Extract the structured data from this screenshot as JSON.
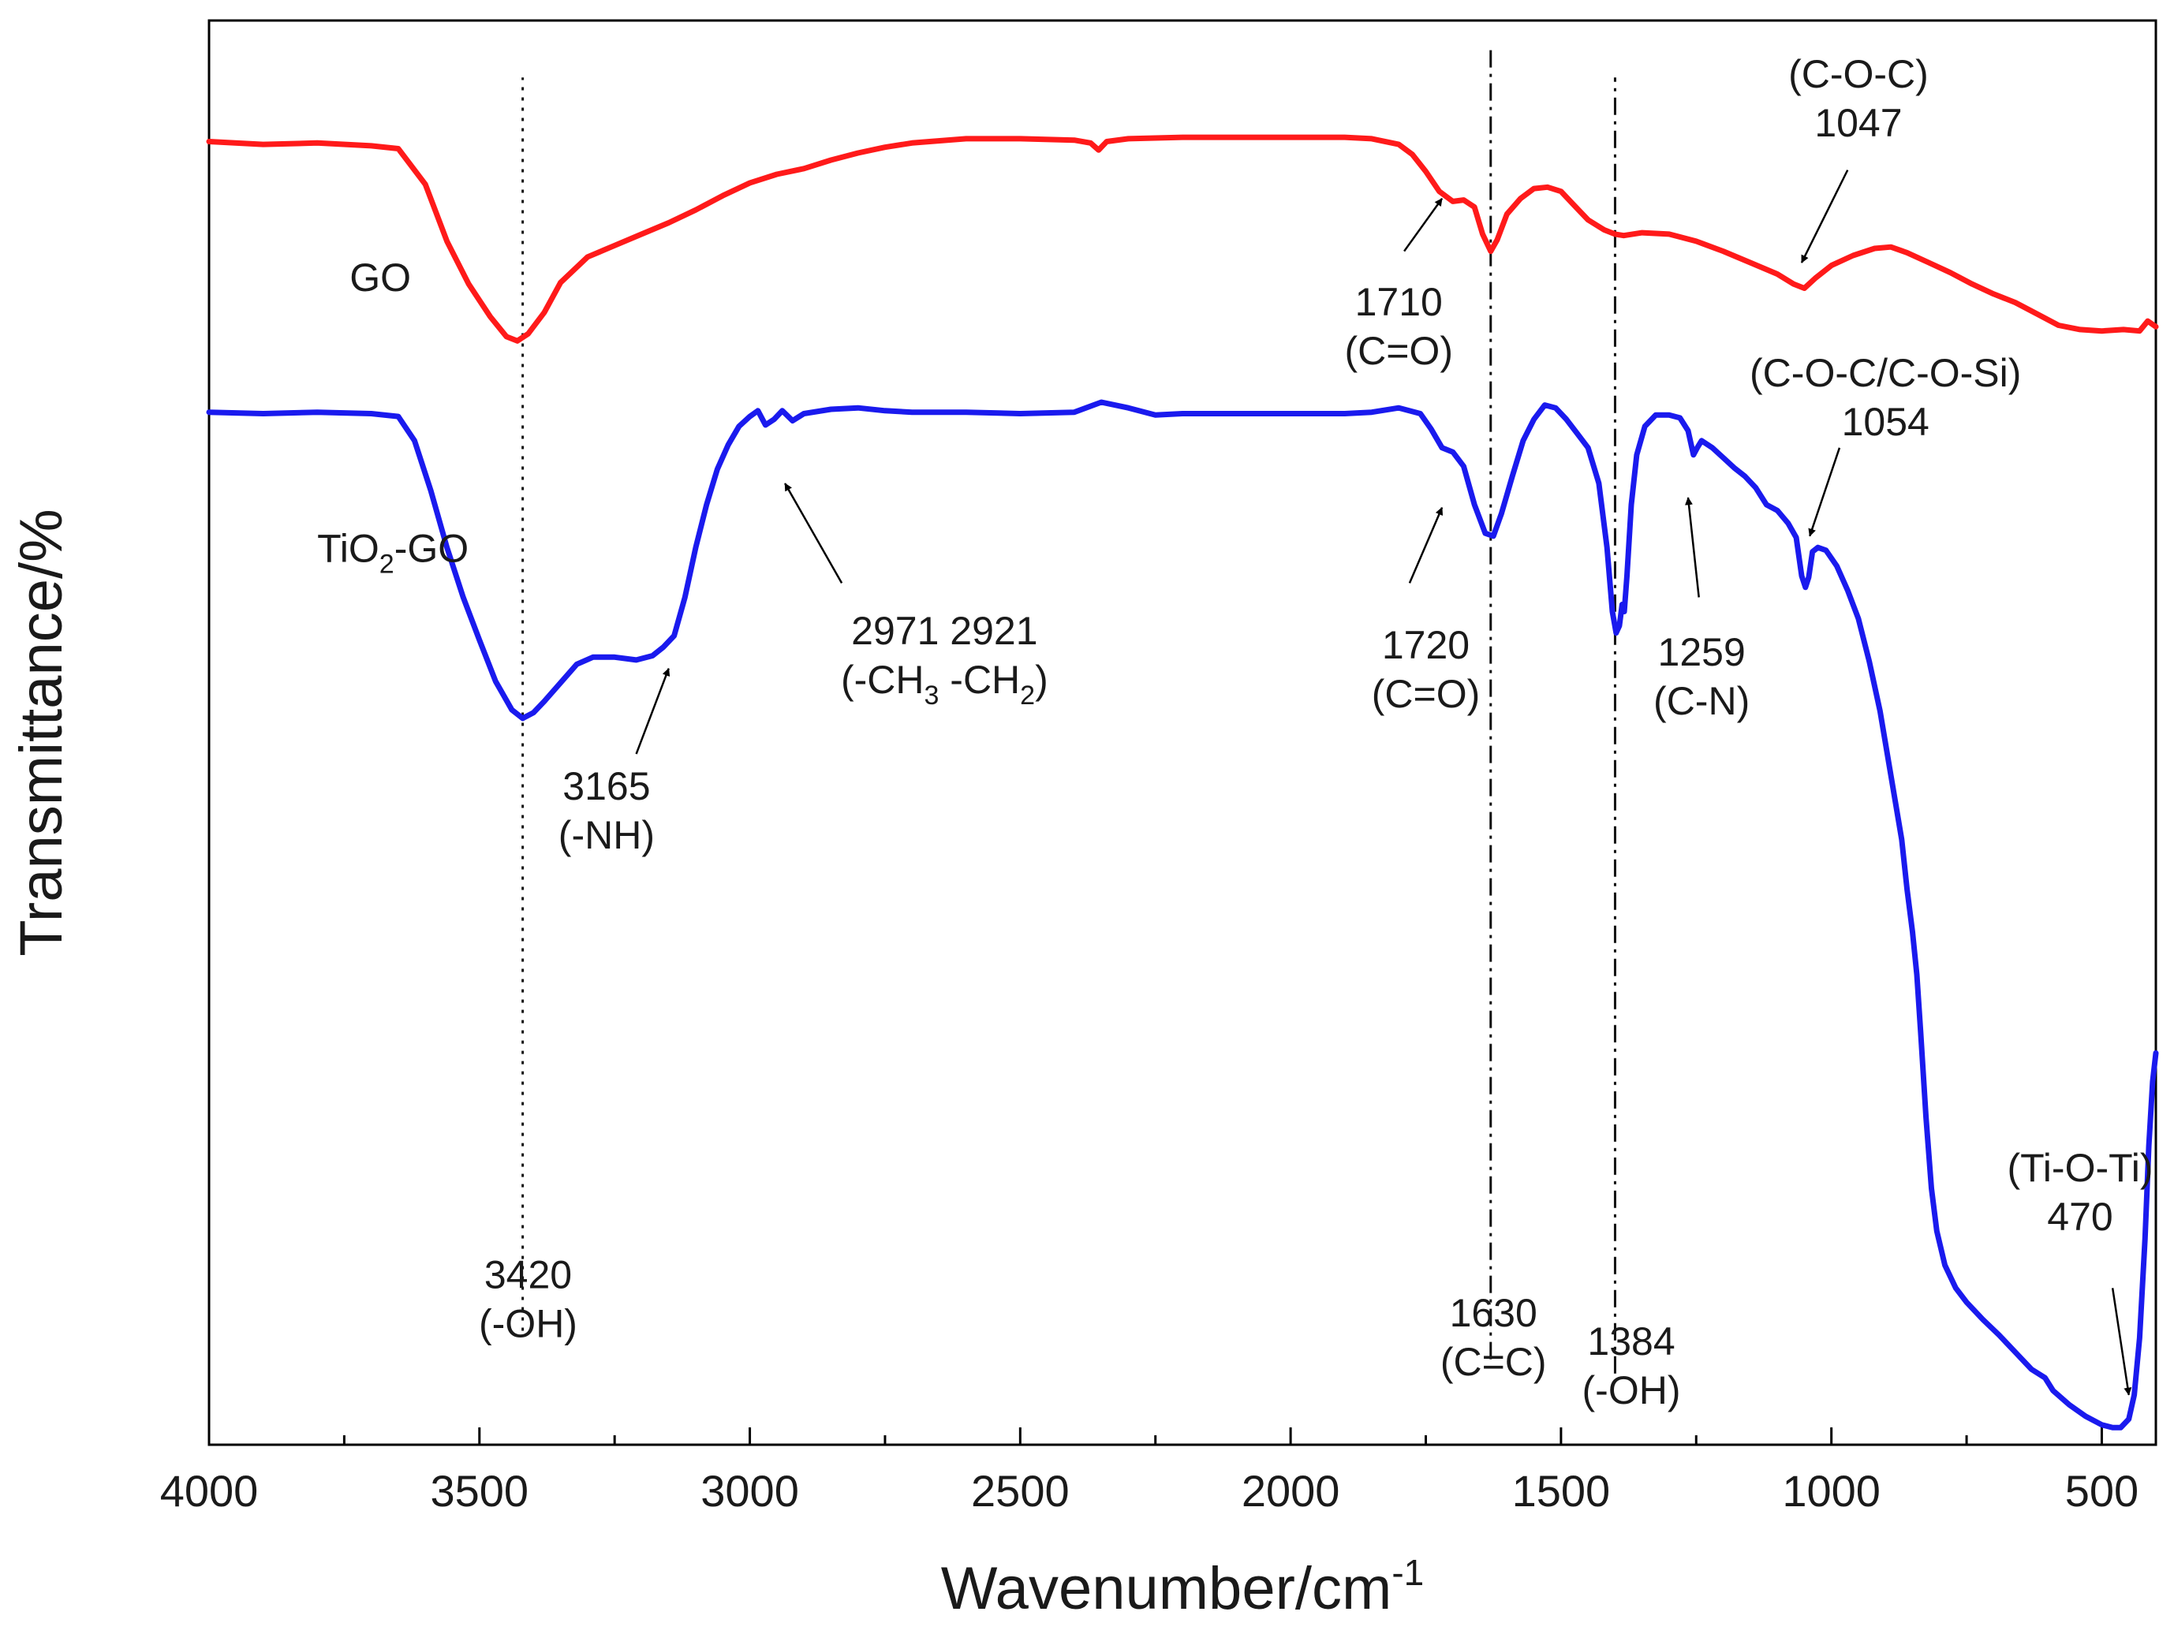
{
  "chart_data": {
    "type": "line",
    "xlabel": "Wavenumber/cm",
    "xlabel_sup": "-1",
    "ylabel": "Transmittance/%",
    "xlim": [
      4000,
      400
    ],
    "ylim": [
      0,
      100
    ],
    "x_reversed": true,
    "x_ticks": [
      4000,
      3500,
      3000,
      2500,
      2000,
      1500,
      1000,
      500
    ],
    "x_tick_labels": [
      "4000",
      "3500",
      "3000",
      "2500",
      "2000",
      "1500",
      "1000",
      "500"
    ],
    "y_tick_labels": false,
    "grid": false,
    "series": [
      {
        "name": "GO",
        "color": "#ff1a1a",
        "points": [
          [
            4000,
            91.5
          ],
          [
            3900,
            91.3
          ],
          [
            3800,
            91.4
          ],
          [
            3700,
            91.2
          ],
          [
            3650,
            91.0
          ],
          [
            3600,
            88.5
          ],
          [
            3560,
            84.5
          ],
          [
            3520,
            81.5
          ],
          [
            3480,
            79.2
          ],
          [
            3450,
            77.8
          ],
          [
            3430,
            77.5
          ],
          [
            3410,
            78.0
          ],
          [
            3380,
            79.5
          ],
          [
            3350,
            81.6
          ],
          [
            3300,
            83.4
          ],
          [
            3250,
            84.2
          ],
          [
            3200,
            85.0
          ],
          [
            3150,
            85.8
          ],
          [
            3100,
            86.7
          ],
          [
            3050,
            87.7
          ],
          [
            3000,
            88.6
          ],
          [
            2950,
            89.2
          ],
          [
            2900,
            89.6
          ],
          [
            2850,
            90.2
          ],
          [
            2800,
            90.7
          ],
          [
            2750,
            91.1
          ],
          [
            2700,
            91.4
          ],
          [
            2600,
            91.7
          ],
          [
            2500,
            91.7
          ],
          [
            2400,
            91.6
          ],
          [
            2370,
            91.4
          ],
          [
            2355,
            90.9
          ],
          [
            2340,
            91.5
          ],
          [
            2300,
            91.7
          ],
          [
            2200,
            91.8
          ],
          [
            2100,
            91.8
          ],
          [
            2000,
            91.8
          ],
          [
            1900,
            91.8
          ],
          [
            1850,
            91.7
          ],
          [
            1800,
            91.3
          ],
          [
            1775,
            90.6
          ],
          [
            1750,
            89.4
          ],
          [
            1725,
            88.0
          ],
          [
            1700,
            87.3
          ],
          [
            1680,
            87.4
          ],
          [
            1660,
            86.9
          ],
          [
            1645,
            85.0
          ],
          [
            1630,
            83.8
          ],
          [
            1618,
            84.6
          ],
          [
            1600,
            86.4
          ],
          [
            1575,
            87.5
          ],
          [
            1550,
            88.2
          ],
          [
            1525,
            88.3
          ],
          [
            1500,
            88.0
          ],
          [
            1475,
            87.0
          ],
          [
            1450,
            86.0
          ],
          [
            1420,
            85.3
          ],
          [
            1400,
            85.0
          ],
          [
            1384,
            84.9
          ],
          [
            1350,
            85.1
          ],
          [
            1300,
            85.0
          ],
          [
            1250,
            84.5
          ],
          [
            1200,
            83.8
          ],
          [
            1150,
            83.0
          ],
          [
            1100,
            82.2
          ],
          [
            1070,
            81.5
          ],
          [
            1050,
            81.2
          ],
          [
            1030,
            81.9
          ],
          [
            1000,
            82.8
          ],
          [
            960,
            83.5
          ],
          [
            920,
            84.0
          ],
          [
            890,
            84.1
          ],
          [
            860,
            83.7
          ],
          [
            820,
            83.0
          ],
          [
            780,
            82.3
          ],
          [
            740,
            81.5
          ],
          [
            700,
            80.8
          ],
          [
            660,
            80.2
          ],
          [
            620,
            79.4
          ],
          [
            580,
            78.6
          ],
          [
            540,
            78.3
          ],
          [
            500,
            78.2
          ],
          [
            460,
            78.3
          ],
          [
            430,
            78.2
          ],
          [
            415,
            78.9
          ],
          [
            400,
            78.5
          ]
        ]
      },
      {
        "name": "TiO₂-GO",
        "color": "#1a1aee",
        "points": [
          [
            4000,
            72.5
          ],
          [
            3900,
            72.4
          ],
          [
            3800,
            72.5
          ],
          [
            3700,
            72.4
          ],
          [
            3650,
            72.2
          ],
          [
            3620,
            70.5
          ],
          [
            3590,
            67.0
          ],
          [
            3560,
            63.0
          ],
          [
            3530,
            59.5
          ],
          [
            3500,
            56.5
          ],
          [
            3470,
            53.6
          ],
          [
            3440,
            51.6
          ],
          [
            3420,
            51.0
          ],
          [
            3400,
            51.4
          ],
          [
            3380,
            52.2
          ],
          [
            3350,
            53.5
          ],
          [
            3320,
            54.8
          ],
          [
            3290,
            55.3
          ],
          [
            3250,
            55.3
          ],
          [
            3210,
            55.1
          ],
          [
            3180,
            55.4
          ],
          [
            3160,
            56.0
          ],
          [
            3140,
            56.8
          ],
          [
            3120,
            59.5
          ],
          [
            3100,
            63.0
          ],
          [
            3080,
            66.0
          ],
          [
            3060,
            68.5
          ],
          [
            3040,
            70.2
          ],
          [
            3020,
            71.5
          ],
          [
            3000,
            72.2
          ],
          [
            2985,
            72.6
          ],
          [
            2971,
            71.6
          ],
          [
            2955,
            72.0
          ],
          [
            2940,
            72.6
          ],
          [
            2921,
            71.9
          ],
          [
            2900,
            72.4
          ],
          [
            2850,
            72.7
          ],
          [
            2800,
            72.8
          ],
          [
            2750,
            72.6
          ],
          [
            2700,
            72.5
          ],
          [
            2600,
            72.5
          ],
          [
            2500,
            72.4
          ],
          [
            2400,
            72.5
          ],
          [
            2350,
            73.2
          ],
          [
            2300,
            72.8
          ],
          [
            2250,
            72.3
          ],
          [
            2200,
            72.4
          ],
          [
            2100,
            72.4
          ],
          [
            2000,
            72.4
          ],
          [
            1900,
            72.4
          ],
          [
            1850,
            72.5
          ],
          [
            1800,
            72.8
          ],
          [
            1760,
            72.4
          ],
          [
            1740,
            71.3
          ],
          [
            1720,
            70.0
          ],
          [
            1700,
            69.7
          ],
          [
            1680,
            68.7
          ],
          [
            1660,
            66.0
          ],
          [
            1640,
            64.0
          ],
          [
            1625,
            63.8
          ],
          [
            1610,
            65.4
          ],
          [
            1590,
            68.0
          ],
          [
            1570,
            70.5
          ],
          [
            1550,
            72.0
          ],
          [
            1530,
            73.0
          ],
          [
            1510,
            72.8
          ],
          [
            1490,
            72.0
          ],
          [
            1470,
            71.0
          ],
          [
            1450,
            70.0
          ],
          [
            1430,
            67.5
          ],
          [
            1415,
            63.0
          ],
          [
            1405,
            58.5
          ],
          [
            1398,
            57.0
          ],
          [
            1392,
            57.5
          ],
          [
            1387,
            59.0
          ],
          [
            1383,
            58.5
          ],
          [
            1378,
            61.0
          ],
          [
            1370,
            66.0
          ],
          [
            1360,
            69.5
          ],
          [
            1345,
            71.5
          ],
          [
            1325,
            72.3
          ],
          [
            1300,
            72.3
          ],
          [
            1280,
            72.1
          ],
          [
            1265,
            71.2
          ],
          [
            1255,
            69.5
          ],
          [
            1248,
            70.0
          ],
          [
            1240,
            70.5
          ],
          [
            1220,
            70.0
          ],
          [
            1200,
            69.3
          ],
          [
            1180,
            68.6
          ],
          [
            1160,
            68.0
          ],
          [
            1140,
            67.2
          ],
          [
            1120,
            66.0
          ],
          [
            1100,
            65.6
          ],
          [
            1080,
            64.7
          ],
          [
            1065,
            63.7
          ],
          [
            1055,
            61.0
          ],
          [
            1048,
            60.2
          ],
          [
            1042,
            60.9
          ],
          [
            1035,
            62.7
          ],
          [
            1025,
            63.0
          ],
          [
            1010,
            62.8
          ],
          [
            990,
            61.7
          ],
          [
            970,
            60.0
          ],
          [
            950,
            58.0
          ],
          [
            930,
            55.0
          ],
          [
            910,
            51.5
          ],
          [
            890,
            47.0
          ],
          [
            870,
            42.5
          ],
          [
            860,
            39.0
          ],
          [
            850,
            36.0
          ],
          [
            842,
            33.0
          ],
          [
            835,
            29.0
          ],
          [
            825,
            23.0
          ],
          [
            815,
            18.0
          ],
          [
            805,
            15.0
          ],
          [
            790,
            12.6
          ],
          [
            770,
            11.0
          ],
          [
            750,
            10.0
          ],
          [
            720,
            8.8
          ],
          [
            690,
            7.7
          ],
          [
            660,
            6.5
          ],
          [
            630,
            5.3
          ],
          [
            605,
            4.7
          ],
          [
            590,
            3.8
          ],
          [
            560,
            2.8
          ],
          [
            530,
            2.0
          ],
          [
            500,
            1.4
          ],
          [
            480,
            1.2
          ],
          [
            465,
            1.2
          ],
          [
            450,
            1.8
          ],
          [
            440,
            3.5
          ],
          [
            430,
            7.5
          ],
          [
            420,
            14.5
          ],
          [
            413,
            21.0
          ],
          [
            406,
            25.5
          ],
          [
            400,
            27.5
          ]
        ]
      }
    ],
    "series_labels": [
      {
        "text": "GO",
        "x": 3740,
        "y": 81.0
      },
      {
        "text": "TiO",
        "sub": "2",
        "suffix": "-GO",
        "x": 3800,
        "y": 62.0
      }
    ],
    "reference_lines": [
      {
        "x": 3420,
        "style": "dotted",
        "y_from": 8,
        "y_top": 96
      },
      {
        "x": 1630,
        "style": "dashdot",
        "y_from": 6,
        "y_top": 98
      },
      {
        "x": 1400,
        "style": "dashdot",
        "y_from": 5,
        "y_top": 96
      }
    ],
    "annotations": [
      {
        "lines": [
          "3420",
          "(-OH)"
        ],
        "x": 3410,
        "y": 11.0
      },
      {
        "lines": [
          "1630",
          "(C=C)"
        ],
        "x": 1625,
        "y": 8.3
      },
      {
        "lines": [
          "1384",
          "(-OH)"
        ],
        "x": 1370,
        "y": 6.3
      },
      {
        "lines": [
          "1710",
          "(C=O)"
        ],
        "x": 1800,
        "y": 79.3
      },
      {
        "lines": [
          "1720",
          "(C=O)"
        ],
        "x": 1750,
        "y": 55.2
      },
      {
        "lines": [
          "3165",
          "(-NH)"
        ],
        "x": 3265,
        "y": 45.3
      },
      {
        "lines": [
          "2971 2921",
          "(-CH",
          "3",
          " -CH",
          "2",
          ")"
        ],
        "rich": true,
        "x": 2640,
        "y": 56.2
      },
      {
        "lines": [
          "1259",
          "(C-N)"
        ],
        "x": 1240,
        "y": 54.7
      },
      {
        "lines": [
          "(C-O-C/C-O-Si)",
          "1054"
        ],
        "x": 900,
        "y": 74.3
      },
      {
        "lines": [
          "(C-O-C)",
          "1047"
        ],
        "x": 950,
        "y": 95.3
      },
      {
        "lines": [
          "(Ti-O-Ti)",
          "470"
        ],
        "x": 540,
        "y": 18.5
      }
    ],
    "arrows": [
      {
        "from": [
          1790,
          83.8
        ],
        "to": [
          1720,
          87.5
        ]
      },
      {
        "from": [
          1780,
          60.5
        ],
        "to": [
          1720,
          65.8
        ]
      },
      {
        "from": [
          3210,
          48.5
        ],
        "to": [
          3150,
          54.5
        ]
      },
      {
        "from": [
          2830,
          60.5
        ],
        "to": [
          2935,
          67.5
        ]
      },
      {
        "from": [
          1245,
          59.5
        ],
        "to": [
          1265,
          66.5
        ]
      },
      {
        "from": [
          985,
          70.0
        ],
        "to": [
          1040,
          63.8
        ]
      },
      {
        "from": [
          970,
          89.5
        ],
        "to": [
          1055,
          83.0
        ]
      },
      {
        "from": [
          480,
          11.0
        ],
        "to": [
          450,
          3.5
        ]
      }
    ]
  }
}
